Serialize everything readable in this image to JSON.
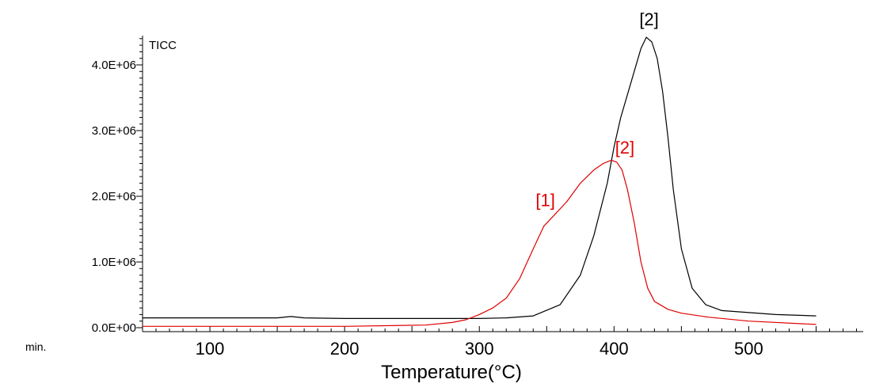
{
  "chart_data": {
    "type": "line",
    "plot_label": "TICC",
    "xlabel": "Temperature(°C)",
    "x_unit_label": "min.",
    "xlim": [
      50,
      585
    ],
    "ylim": [
      0,
      4.45
    ],
    "x_ticks": [
      {
        "value": 100,
        "label": "100"
      },
      {
        "value": 200,
        "label": "200"
      },
      {
        "value": 300,
        "label": "300"
      },
      {
        "value": 400,
        "label": "400"
      },
      {
        "value": 500,
        "label": "500"
      }
    ],
    "y_ticks": [
      {
        "value": 0,
        "label": "0.0E+00"
      },
      {
        "value": 1,
        "label": "1.0E+06"
      },
      {
        "value": 2,
        "label": "2.0E+06"
      },
      {
        "value": 3,
        "label": "3.0E+06"
      },
      {
        "value": 4,
        "label": "4.0E+06"
      }
    ],
    "y_unit_note": "values in units of 1E+06",
    "series": [
      {
        "name": "black",
        "color": "#000000",
        "x": [
          50,
          150,
          160,
          170,
          200,
          300,
          320,
          340,
          360,
          375,
          385,
          395,
          400,
          405,
          410,
          415,
          420,
          424,
          428,
          432,
          436,
          440,
          444,
          450,
          458,
          468,
          480,
          500,
          520,
          550
        ],
        "y": [
          0.15,
          0.15,
          0.17,
          0.15,
          0.14,
          0.14,
          0.15,
          0.18,
          0.35,
          0.8,
          1.4,
          2.2,
          2.75,
          3.2,
          3.55,
          3.9,
          4.25,
          4.42,
          4.35,
          4.1,
          3.6,
          2.9,
          2.1,
          1.2,
          0.6,
          0.35,
          0.26,
          0.23,
          0.2,
          0.18
        ]
      },
      {
        "name": "red",
        "color": "#e00000",
        "x": [
          50,
          100,
          200,
          260,
          280,
          290,
          300,
          310,
          320,
          330,
          340,
          348,
          355,
          365,
          375,
          385,
          392,
          398,
          402,
          406,
          410,
          415,
          420,
          425,
          430,
          440,
          450,
          470,
          500,
          550
        ],
        "y": [
          0.02,
          0.02,
          0.02,
          0.04,
          0.08,
          0.12,
          0.2,
          0.3,
          0.45,
          0.75,
          1.2,
          1.55,
          1.7,
          1.92,
          2.2,
          2.4,
          2.5,
          2.55,
          2.52,
          2.4,
          2.1,
          1.6,
          1.0,
          0.6,
          0.4,
          0.28,
          0.22,
          0.16,
          0.1,
          0.05
        ]
      }
    ],
    "annotations": [
      {
        "text": "[2]",
        "color": "#000000",
        "x": 426,
        "y": 4.6
      },
      {
        "text": "[1]",
        "color": "#e00000",
        "x": 349,
        "y": 1.85
      },
      {
        "text": "[2]",
        "color": "#e00000",
        "x": 408,
        "y": 2.65
      }
    ]
  }
}
